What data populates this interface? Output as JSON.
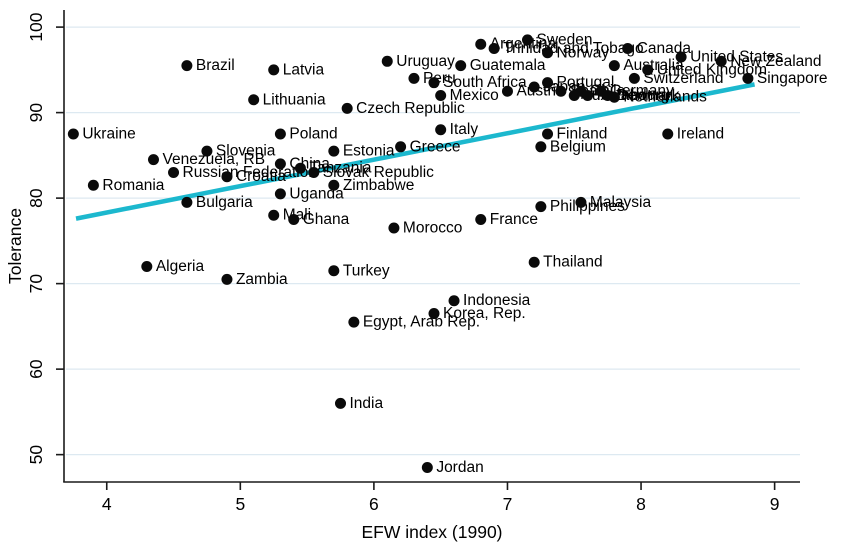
{
  "chart_data": {
    "type": "scatter",
    "title": "",
    "xlabel": "EFW index (1990)",
    "ylabel": "Tolerance",
    "xlim": [
      3.68,
      9.19
    ],
    "ylim": [
      46.8,
      102.0
    ],
    "xticks": [
      4,
      5,
      6,
      7,
      8,
      9
    ],
    "yticks": [
      50,
      60,
      70,
      80,
      90,
      100
    ],
    "grid": "horizontal",
    "legend": "none",
    "marker_color": "#0a0a0a",
    "gridline_color": "#dde9f1",
    "axis_color": "#1a1a1a",
    "trendline": {
      "color": "#1cb8ce",
      "x1": 3.77,
      "y1": 77.6,
      "x2": 8.85,
      "y2": 93.3
    },
    "points": [
      {
        "label": "Ukraine",
        "x": 3.75,
        "y": 87.5
      },
      {
        "label": "Romania",
        "x": 3.9,
        "y": 81.5
      },
      {
        "label": "Algeria",
        "x": 4.3,
        "y": 72
      },
      {
        "label": "Venezuela, RB",
        "x": 4.35,
        "y": 84.5
      },
      {
        "label": "Russian Federation",
        "x": 4.5,
        "y": 83
      },
      {
        "label": "Bulgaria",
        "x": 4.6,
        "y": 79.5
      },
      {
        "label": "Brazil",
        "x": 4.6,
        "y": 95.5
      },
      {
        "label": "Slovenia",
        "x": 4.75,
        "y": 85.5
      },
      {
        "label": "Croatia",
        "x": 4.9,
        "y": 82.5
      },
      {
        "label": "Zambia",
        "x": 4.9,
        "y": 70.5
      },
      {
        "label": "Lithuania",
        "x": 5.1,
        "y": 91.5
      },
      {
        "label": "Mali",
        "x": 5.25,
        "y": 78
      },
      {
        "label": "Latvia",
        "x": 5.25,
        "y": 95
      },
      {
        "label": "Poland",
        "x": 5.3,
        "y": 87.5
      },
      {
        "label": "China",
        "x": 5.3,
        "y": 84
      },
      {
        "label": "Uganda",
        "x": 5.3,
        "y": 80.5
      },
      {
        "label": "Ghana",
        "x": 5.4,
        "y": 77.5
      },
      {
        "label": "Tanzania",
        "x": 5.45,
        "y": 83.5
      },
      {
        "label": "Slovak Republic",
        "x": 5.55,
        "y": 83
      },
      {
        "label": "Zimbabwe",
        "x": 5.7,
        "y": 81.5
      },
      {
        "label": "Estonia",
        "x": 5.7,
        "y": 85.5
      },
      {
        "label": "Turkey",
        "x": 5.7,
        "y": 71.5
      },
      {
        "label": "India",
        "x": 5.75,
        "y": 56
      },
      {
        "label": "Czech Republic",
        "x": 5.8,
        "y": 90.5
      },
      {
        "label": "Egypt, Arab Rep.",
        "x": 5.85,
        "y": 65.5
      },
      {
        "label": "Uruguay",
        "x": 6.1,
        "y": 96
      },
      {
        "label": "Morocco",
        "x": 6.15,
        "y": 76.5
      },
      {
        "label": "Greece",
        "x": 6.2,
        "y": 86
      },
      {
        "label": "Peru",
        "x": 6.3,
        "y": 94
      },
      {
        "label": "Jordan",
        "x": 6.4,
        "y": 48.5
      },
      {
        "label": "Korea, Rep.",
        "x": 6.45,
        "y": 66.5
      },
      {
        "label": "South Africa",
        "x": 6.45,
        "y": 93.5
      },
      {
        "label": "Mexico",
        "x": 6.5,
        "y": 92
      },
      {
        "label": "Italy",
        "x": 6.5,
        "y": 88
      },
      {
        "label": "Indonesia",
        "x": 6.6,
        "y": 68
      },
      {
        "label": "Guatemala",
        "x": 6.65,
        "y": 95.5
      },
      {
        "label": "Argentina",
        "x": 6.8,
        "y": 98
      },
      {
        "label": "France",
        "x": 6.8,
        "y": 77.5
      },
      {
        "label": "Trinidad and Tobago",
        "x": 6.9,
        "y": 97.5
      },
      {
        "label": "Austria",
        "x": 7.0,
        "y": 92.5
      },
      {
        "label": "Sweden",
        "x": 7.15,
        "y": 98.5
      },
      {
        "label": "Thailand",
        "x": 7.2,
        "y": 72.5
      },
      {
        "label": "Japan",
        "x": 7.2,
        "y": 93
      },
      {
        "label": "Philippines",
        "x": 7.25,
        "y": 79
      },
      {
        "label": "Belgium",
        "x": 7.25,
        "y": 86
      },
      {
        "label": "Finland",
        "x": 7.3,
        "y": 87.5
      },
      {
        "label": "Norway",
        "x": 7.3,
        "y": 97
      },
      {
        "label": "Portugal",
        "x": 7.3,
        "y": 93.5
      },
      {
        "label": "Spain",
        "x": 7.4,
        "y": 92.5
      },
      {
        "label": "Luxembourg",
        "x": 7.5,
        "y": 92
      },
      {
        "label": "Chile",
        "x": 7.55,
        "y": 92.5
      },
      {
        "label": "Malaysia",
        "x": 7.55,
        "y": 79.5
      },
      {
        "label": "Iceland",
        "x": 7.6,
        "y": 92
      },
      {
        "label": "Germany",
        "x": 7.7,
        "y": 92.5
      },
      {
        "label": "Denmark",
        "x": 7.75,
        "y": 92
      },
      {
        "label": "Netherlands",
        "x": 7.8,
        "y": 91.8
      },
      {
        "label": "Australia",
        "x": 7.8,
        "y": 95.5
      },
      {
        "label": "Canada",
        "x": 7.9,
        "y": 97.5
      },
      {
        "label": "Switzerland",
        "x": 7.95,
        "y": 94
      },
      {
        "label": "United Kingdom",
        "x": 8.05,
        "y": 95
      },
      {
        "label": "Ireland",
        "x": 8.2,
        "y": 87.5
      },
      {
        "label": "United States",
        "x": 8.3,
        "y": 96.5
      },
      {
        "label": "New Zealand",
        "x": 8.6,
        "y": 96
      },
      {
        "label": "Singapore",
        "x": 8.8,
        "y": 94
      }
    ]
  }
}
